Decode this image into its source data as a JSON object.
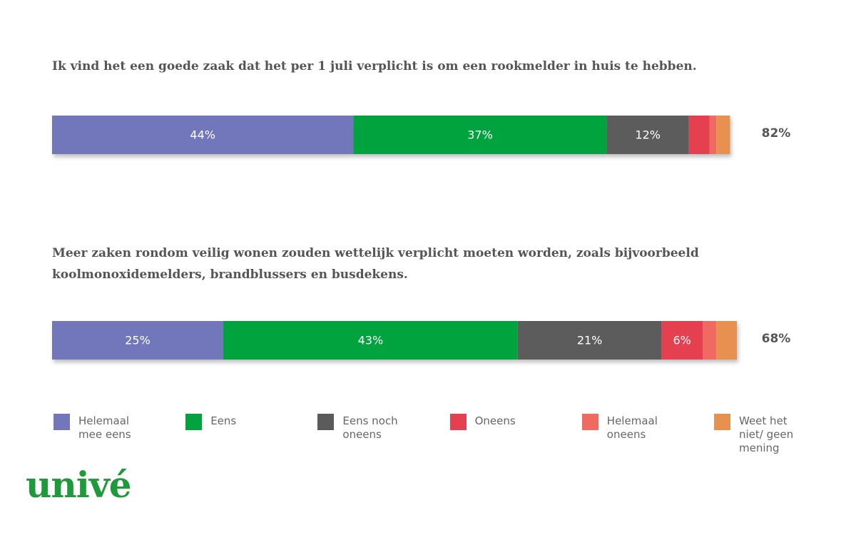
{
  "chart_data": {
    "type": "bar",
    "orientation": "horizontal",
    "stacked": true,
    "categories": [
      "Ik vind het een goede zaak dat het per 1 juli verplicht is om een rookmelder in huis te hebben.",
      "Meer zaken rondom veilig wonen zouden wettelijk verplicht moeten worden, zoals bijvoorbeeld koolmonoxidemelders, brandblussers en busdekens."
    ],
    "xlim": [
      0,
      100
    ],
    "series": [
      {
        "name": "Helemaal mee eens",
        "color": "#7277bb",
        "values": [
          44,
          25
        ],
        "value_labels": [
          "44%",
          "25%"
        ]
      },
      {
        "name": "Eens",
        "color": "#00a33e",
        "values": [
          37,
          43
        ],
        "value_labels": [
          "37%",
          "43%"
        ]
      },
      {
        "name": "Eens noch oneens",
        "color": "#5b5b5b",
        "values": [
          12,
          21
        ],
        "value_labels": [
          "12%",
          "21%"
        ]
      },
      {
        "name": "Oneens",
        "color": "#e5404f",
        "values": [
          3,
          6
        ],
        "value_labels": [
          null,
          "6%"
        ]
      },
      {
        "name": "Helemaal oneens",
        "color": "#ef6b60",
        "values": [
          1,
          2
        ],
        "value_labels": [
          null,
          null
        ]
      },
      {
        "name": "Weet het niet/ geen mening",
        "color": "#e8904f",
        "values": [
          2,
          3
        ],
        "value_labels": [
          null,
          null
        ]
      }
    ],
    "totals": {
      "values": [
        82,
        68
      ],
      "value_labels": [
        "82%",
        "68%"
      ]
    }
  },
  "logo": "univé"
}
